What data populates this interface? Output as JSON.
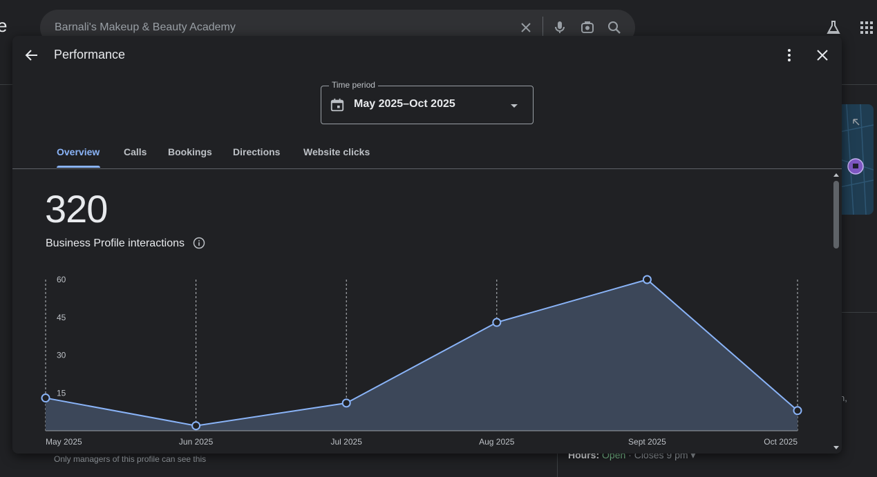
{
  "background": {
    "logo_fragment": "e",
    "search": {
      "value": "Barnali's Makeup & Beauty Academy"
    },
    "right_fragment": "n,",
    "footnote": "Only managers of this profile can see this",
    "hours": {
      "label": "Hours:",
      "status": "Open",
      "detail": "· Closes 9 pm ▾"
    }
  },
  "dialog": {
    "title": "Performance",
    "time_period": {
      "label": "Time period",
      "value": "May 2025–Oct 2025"
    },
    "tabs": [
      {
        "label": "Overview",
        "active": true
      },
      {
        "label": "Calls",
        "active": false
      },
      {
        "label": "Bookings",
        "active": false
      },
      {
        "label": "Directions",
        "active": false
      },
      {
        "label": "Website clicks",
        "active": false
      }
    ],
    "total": "320",
    "metric_label": "Business Profile interactions"
  },
  "colors": {
    "accent": "#8ab4f8",
    "area_fill": "#3c4759",
    "background": "#202124"
  },
  "chart_data": {
    "type": "area",
    "x": [
      "May 2025",
      "Jun 2025",
      "Jul 2025",
      "Aug 2025",
      "Sept 2025",
      "Oct 2025"
    ],
    "series": [
      {
        "values": [
          13,
          2,
          11,
          43,
          60,
          8
        ]
      }
    ],
    "yticks": [
      15,
      30,
      45,
      60
    ],
    "ylim": [
      0,
      60
    ],
    "xlabel": "",
    "ylabel": "",
    "title": ""
  }
}
